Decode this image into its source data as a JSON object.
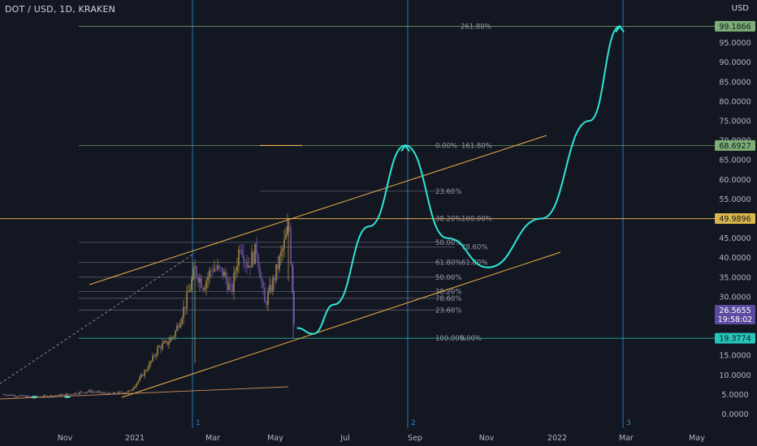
{
  "header": {
    "symbol": "DOT / USD, 1D, KRAKEN",
    "currency": "USD"
  },
  "colors": {
    "background": "#131722",
    "axis_text": "#b2b5be",
    "fib_line": "#787b86",
    "fib_text": "#9598a1",
    "trend_orange": "#f0b04a",
    "projection": "#2ee6d6",
    "vertical_marker": "#2d8fd5",
    "green_level": "#7cae75",
    "candle_up": "#b89a45",
    "candle_down": "#7b5ab5"
  },
  "chart_data": {
    "type": "line",
    "title": "DOT / USD, 1D, KRAKEN",
    "xlabel": "",
    "ylabel": "USD",
    "ylim": [
      0,
      105
    ],
    "y_ticks": [
      "95.0000",
      "90.0000",
      "85.0000",
      "80.0000",
      "75.0000",
      "70.0000",
      "65.0000",
      "60.0000",
      "55.0000",
      "50.0000",
      "45.0000",
      "40.0000",
      "35.0000",
      "30.0000",
      "25.0000",
      "20.0000",
      "15.0000",
      "10.0000",
      "5.0000",
      "0.0000"
    ],
    "x_ticks": [
      "Nov",
      "2021",
      "Mar",
      "May",
      "Jul",
      "Sep",
      "Nov",
      "2022",
      "Mar",
      "May"
    ],
    "price_labels": [
      {
        "value": 99.1866,
        "text": "99.1866",
        "kind": "green"
      },
      {
        "value": 68.6927,
        "text": "68.6927",
        "kind": "green"
      },
      {
        "value": 49.9896,
        "text": "49.9896",
        "kind": "orange"
      },
      {
        "value": 26.5655,
        "text": "26.5655",
        "sub": "19:58:02",
        "kind": "purple"
      },
      {
        "value": 19.3774,
        "text": "19.3774",
        "kind": "teal"
      }
    ],
    "fib_levels": [
      {
        "value": 99.1866,
        "label": "261.80%",
        "label_offset": 0
      },
      {
        "value": 68.6927,
        "label": "0.00%",
        "label_offset": 0
      },
      {
        "value": 68.6927,
        "label": "161.80%",
        "label_offset": 32
      },
      {
        "value": 57.0,
        "label": "23.60%",
        "label_offset": 0
      },
      {
        "value": 49.9896,
        "label": "38.20%",
        "label_offset": 0
      },
      {
        "value": 49.9896,
        "label": "100.00%",
        "label_offset": 32
      },
      {
        "value": 43.9,
        "label": "50.00%",
        "label_offset": 0
      },
      {
        "value": 42.7,
        "label": "78.60%",
        "label_offset": 32
      },
      {
        "value": 38.8,
        "label": "61.80%",
        "label_offset": 0
      },
      {
        "value": 38.8,
        "label": "61.80%",
        "label_offset": 32
      },
      {
        "value": 35.0,
        "label": "50.00%",
        "label_offset": 0
      },
      {
        "value": 31.3,
        "label": "38.20%",
        "label_offset": 0
      },
      {
        "value": 29.6,
        "label": "78.60%",
        "label_offset": 0
      },
      {
        "value": 26.6,
        "label": "23.60%",
        "label_offset": 0
      },
      {
        "value": 19.3774,
        "label": "100.00%",
        "label_offset": 0
      },
      {
        "value": 19.3774,
        "label": "0.00%",
        "label_offset": 30
      }
    ],
    "time_markers": [
      "1",
      "2",
      "3"
    ],
    "projection_path": [
      {
        "t": "2021-05-19",
        "y": 22.0
      },
      {
        "t": "2021-06-02",
        "y": 20.5
      },
      {
        "t": "2021-06-20",
        "y": 28.0
      },
      {
        "t": "2021-07-20",
        "y": 48.0
      },
      {
        "t": "2021-08-20",
        "y": 68.6927
      },
      {
        "t": "2021-09-25",
        "y": 45.0
      },
      {
        "t": "2021-10-30",
        "y": 37.5
      },
      {
        "t": "2021-12-15",
        "y": 50.0
      },
      {
        "t": "2022-01-25",
        "y": 75.0
      },
      {
        "t": "2022-02-20",
        "y": 99.1866
      }
    ]
  }
}
